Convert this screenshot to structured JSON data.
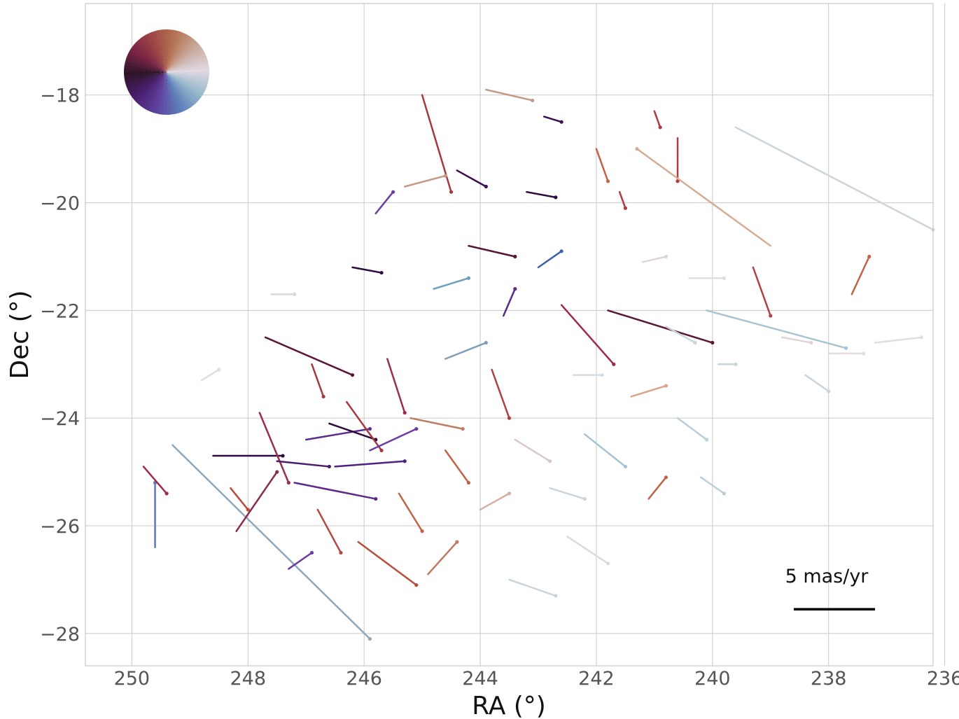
{
  "chart_data": {
    "type": "scatter",
    "subtype": "proper-motion vector field (quiver), points coloured by motion direction",
    "xlabel": "RA (°)",
    "ylabel": "Dec (°)",
    "x_inverted": true,
    "xlim": [
      250.8,
      236.2
    ],
    "ylim": [
      -28.6,
      -16.3
    ],
    "xticks": [
      250,
      248,
      246,
      244,
      242,
      240,
      238,
      236
    ],
    "xtick_labels": [
      "250",
      "248",
      "246",
      "244",
      "242",
      "240",
      "238",
      "236"
    ],
    "yticks": [
      -18,
      -20,
      -22,
      -24,
      -26,
      -28
    ],
    "ytick_labels": [
      "−18",
      "−20",
      "−22",
      "−24",
      "−26",
      "−28"
    ],
    "grid": true,
    "scale_bar": {
      "label": "5 mas/yr",
      "ra_start": 238.6,
      "ra_end": 237.2,
      "dec": -27.55
    },
    "color_wheel": {
      "position": "top-left",
      "colormap": "twilight_shifted"
    },
    "series": [
      {
        "values": [
          {
            "ra": 249.6,
            "dec": -26.4,
            "dra": 0.0,
            "ddec": 1.2,
            "color": "#5e78b8"
          },
          {
            "ra": 249.8,
            "dec": -24.9,
            "dra": -0.4,
            "ddec": -0.5,
            "color": "#a02a4a"
          },
          {
            "ra": 249.3,
            "dec": -24.5,
            "dra": -3.4,
            "ddec": -3.6,
            "color": "#8fa7bb"
          },
          {
            "ra": 248.6,
            "dec": -24.7,
            "dra": -1.2,
            "ddec": 0.0,
            "color": "#2e0a3e"
          },
          {
            "ra": 248.2,
            "dec": -26.1,
            "dra": -0.7,
            "ddec": 1.1,
            "color": "#8c2a4f"
          },
          {
            "ra": 247.8,
            "dec": -23.9,
            "dra": -0.5,
            "ddec": -1.3,
            "color": "#9b2d4d"
          },
          {
            "ra": 247.7,
            "dec": -22.5,
            "dra": -1.5,
            "ddec": -0.7,
            "color": "#5a1538"
          },
          {
            "ra": 247.5,
            "dec": -24.8,
            "dra": -0.9,
            "ddec": -0.1,
            "color": "#4a1d6a"
          },
          {
            "ra": 247.2,
            "dec": -25.2,
            "dra": -1.4,
            "ddec": -0.3,
            "color": "#5b2a8a"
          },
          {
            "ra": 247.0,
            "dec": -24.4,
            "dra": -1.1,
            "ddec": 0.2,
            "color": "#5a2d8f"
          },
          {
            "ra": 246.8,
            "dec": -25.7,
            "dra": -0.4,
            "ddec": -0.8,
            "color": "#b3493f"
          },
          {
            "ra": 246.6,
            "dec": -24.1,
            "dra": -0.8,
            "ddec": -0.3,
            "color": "#2e0a3e"
          },
          {
            "ra": 246.5,
            "dec": -24.9,
            "dra": -1.2,
            "ddec": 0.1,
            "color": "#4c2380"
          },
          {
            "ra": 246.3,
            "dec": -23.7,
            "dra": -0.6,
            "ddec": -0.9,
            "color": "#a8383f"
          },
          {
            "ra": 246.1,
            "dec": -26.3,
            "dra": -1.0,
            "ddec": -0.8,
            "color": "#b84c3d"
          },
          {
            "ra": 245.9,
            "dec": -24.6,
            "dra": -0.8,
            "ddec": 0.4,
            "color": "#6b3ea3"
          },
          {
            "ra": 245.6,
            "dec": -22.9,
            "dra": -0.3,
            "ddec": -1.0,
            "color": "#9b2d4d"
          },
          {
            "ra": 245.4,
            "dec": -25.4,
            "dra": -0.4,
            "ddec": -0.7,
            "color": "#c36244"
          },
          {
            "ra": 245.2,
            "dec": -24.0,
            "dra": -0.9,
            "ddec": -0.2,
            "color": "#c07b63"
          },
          {
            "ra": 245.0,
            "dec": -18.0,
            "dra": -0.5,
            "ddec": -1.8,
            "color": "#a8383f"
          },
          {
            "ra": 244.8,
            "dec": -21.6,
            "dra": -0.6,
            "ddec": 0.2,
            "color": "#6fa0bb"
          },
          {
            "ra": 244.6,
            "dec": -24.6,
            "dra": -0.4,
            "ddec": -0.6,
            "color": "#c36244"
          },
          {
            "ra": 244.4,
            "dec": -19.4,
            "dra": -0.5,
            "ddec": -0.3,
            "color": "#3b0f50"
          },
          {
            "ra": 244.2,
            "dec": -20.8,
            "dra": -0.8,
            "ddec": -0.2,
            "color": "#5a1538"
          },
          {
            "ra": 244.0,
            "dec": -25.7,
            "dra": -0.5,
            "ddec": 0.3,
            "color": "#d4b1a2"
          },
          {
            "ra": 243.8,
            "dec": -23.1,
            "dra": -0.3,
            "ddec": -0.9,
            "color": "#b04041"
          },
          {
            "ra": 243.6,
            "dec": -22.1,
            "dra": -0.2,
            "ddec": 0.5,
            "color": "#5b2a8a"
          },
          {
            "ra": 243.4,
            "dec": -24.4,
            "dra": -0.6,
            "ddec": -0.4,
            "color": "#d9c7cf"
          },
          {
            "ra": 243.2,
            "dec": -19.8,
            "dra": -0.5,
            "ddec": -0.1,
            "color": "#2e0a3e"
          },
          {
            "ra": 243.0,
            "dec": -21.2,
            "dra": -0.4,
            "ddec": 0.3,
            "color": "#3b62a8"
          },
          {
            "ra": 242.8,
            "dec": -25.3,
            "dra": -0.6,
            "ddec": -0.2,
            "color": "#c9d5de"
          },
          {
            "ra": 242.6,
            "dec": -21.9,
            "dra": -0.9,
            "ddec": -1.1,
            "color": "#a02a4a"
          },
          {
            "ra": 242.4,
            "dec": -23.2,
            "dra": -0.5,
            "ddec": 0.0,
            "color": "#d5dde3"
          },
          {
            "ra": 242.2,
            "dec": -24.3,
            "dra": -0.7,
            "ddec": -0.6,
            "color": "#a8c3d3"
          },
          {
            "ra": 242.0,
            "dec": -19.0,
            "dra": -0.2,
            "ddec": -0.6,
            "color": "#c36244"
          },
          {
            "ra": 241.8,
            "dec": -22.0,
            "dra": -1.8,
            "ddec": -0.6,
            "color": "#5a1538"
          },
          {
            "ra": 241.6,
            "dec": -19.8,
            "dra": -0.1,
            "ddec": -0.3,
            "color": "#b33a3c"
          },
          {
            "ra": 241.4,
            "dec": -23.6,
            "dra": -0.6,
            "ddec": 0.2,
            "color": "#d9a48b"
          },
          {
            "ra": 241.2,
            "dec": -21.1,
            "dra": -0.4,
            "ddec": 0.1,
            "color": "#e0d3d6"
          },
          {
            "ra": 241.0,
            "dec": -18.3,
            "dra": -0.1,
            "ddec": -0.3,
            "color": "#b33a3c"
          },
          {
            "ra": 240.8,
            "dec": -22.3,
            "dra": -0.5,
            "ddec": -0.3,
            "color": "#c9d5de"
          },
          {
            "ra": 240.6,
            "dec": -18.8,
            "dra": 0.0,
            "ddec": -0.8,
            "color": "#b33a3c"
          },
          {
            "ra": 240.4,
            "dec": -21.4,
            "dra": -0.6,
            "ddec": 0.0,
            "color": "#e4dce0"
          },
          {
            "ra": 240.2,
            "dec": -25.1,
            "dra": -0.4,
            "ddec": -0.3,
            "color": "#b9cfdc"
          },
          {
            "ra": 240.1,
            "dec": -22.0,
            "dra": -2.4,
            "ddec": -0.7,
            "color": "#a8c3d3"
          },
          {
            "ra": 239.9,
            "dec": -23.0,
            "dra": -0.3,
            "ddec": 0.0,
            "color": "#c9d5de"
          },
          {
            "ra": 239.6,
            "dec": -18.6,
            "dra": -3.4,
            "ddec": -1.9,
            "color": "#ccd5dc"
          },
          {
            "ra": 239.3,
            "dec": -21.2,
            "dra": -0.3,
            "ddec": -0.9,
            "color": "#b04041"
          },
          {
            "ra": 239.0,
            "dec": -20.8,
            "dra": 2.3,
            "ddec": 1.8,
            "color": "#d7ac95"
          },
          {
            "ra": 238.8,
            "dec": -22.5,
            "dra": -0.5,
            "ddec": -0.1,
            "color": "#e0d3d6"
          },
          {
            "ra": 238.4,
            "dec": -23.2,
            "dra": -0.4,
            "ddec": -0.3,
            "color": "#c9d5de"
          },
          {
            "ra": 238.0,
            "dec": -22.8,
            "dra": -0.6,
            "ddec": 0.0,
            "color": "#e4dce0"
          },
          {
            "ra": 237.6,
            "dec": -21.7,
            "dra": -0.3,
            "ddec": 0.7,
            "color": "#c36244"
          },
          {
            "ra": 237.2,
            "dec": -22.6,
            "dra": -0.8,
            "ddec": 0.1,
            "color": "#e4dce0"
          },
          {
            "ra": 246.2,
            "dec": -21.2,
            "dra": -0.5,
            "ddec": -0.1,
            "color": "#2e0a3e"
          },
          {
            "ra": 245.8,
            "dec": -20.2,
            "dra": -0.3,
            "ddec": 0.4,
            "color": "#6b3ea3"
          },
          {
            "ra": 244.6,
            "dec": -22.9,
            "dra": -0.7,
            "ddec": 0.3,
            "color": "#7fa0bb"
          },
          {
            "ra": 243.9,
            "dec": -17.9,
            "dra": -0.8,
            "ddec": -0.2,
            "color": "#c39a85"
          },
          {
            "ra": 242.9,
            "dec": -18.4,
            "dra": -0.3,
            "ddec": -0.1,
            "color": "#3b0f50"
          },
          {
            "ra": 247.6,
            "dec": -21.7,
            "dra": -0.4,
            "ddec": 0.0,
            "color": "#d9d9dc"
          },
          {
            "ra": 248.8,
            "dec": -23.3,
            "dra": -0.3,
            "ddec": 0.2,
            "color": "#e4dce0"
          },
          {
            "ra": 244.9,
            "dec": -26.9,
            "dra": -0.5,
            "ddec": 0.6,
            "color": "#c07b63"
          },
          {
            "ra": 243.5,
            "dec": -27.0,
            "dra": -0.8,
            "ddec": -0.3,
            "color": "#c9d5de"
          },
          {
            "ra": 242.5,
            "dec": -26.2,
            "dra": -0.7,
            "ddec": -0.5,
            "color": "#d5dde3"
          },
          {
            "ra": 240.6,
            "dec": -24.0,
            "dra": -0.5,
            "ddec": -0.4,
            "color": "#b9cfdc"
          },
          {
            "ra": 241.1,
            "dec": -25.5,
            "dra": -0.3,
            "ddec": 0.4,
            "color": "#c36244"
          },
          {
            "ra": 245.3,
            "dec": -19.7,
            "dra": -0.7,
            "ddec": 0.2,
            "color": "#c39a85"
          },
          {
            "ra": 246.9,
            "dec": -23.0,
            "dra": -0.2,
            "ddec": -0.6,
            "color": "#a8383f"
          },
          {
            "ra": 247.3,
            "dec": -26.8,
            "dra": -0.4,
            "ddec": 0.3,
            "color": "#6b3ea3"
          },
          {
            "ra": 248.3,
            "dec": -25.3,
            "dra": -0.3,
            "ddec": -0.4,
            "color": "#b84c3d"
          }
        ]
      }
    ]
  }
}
